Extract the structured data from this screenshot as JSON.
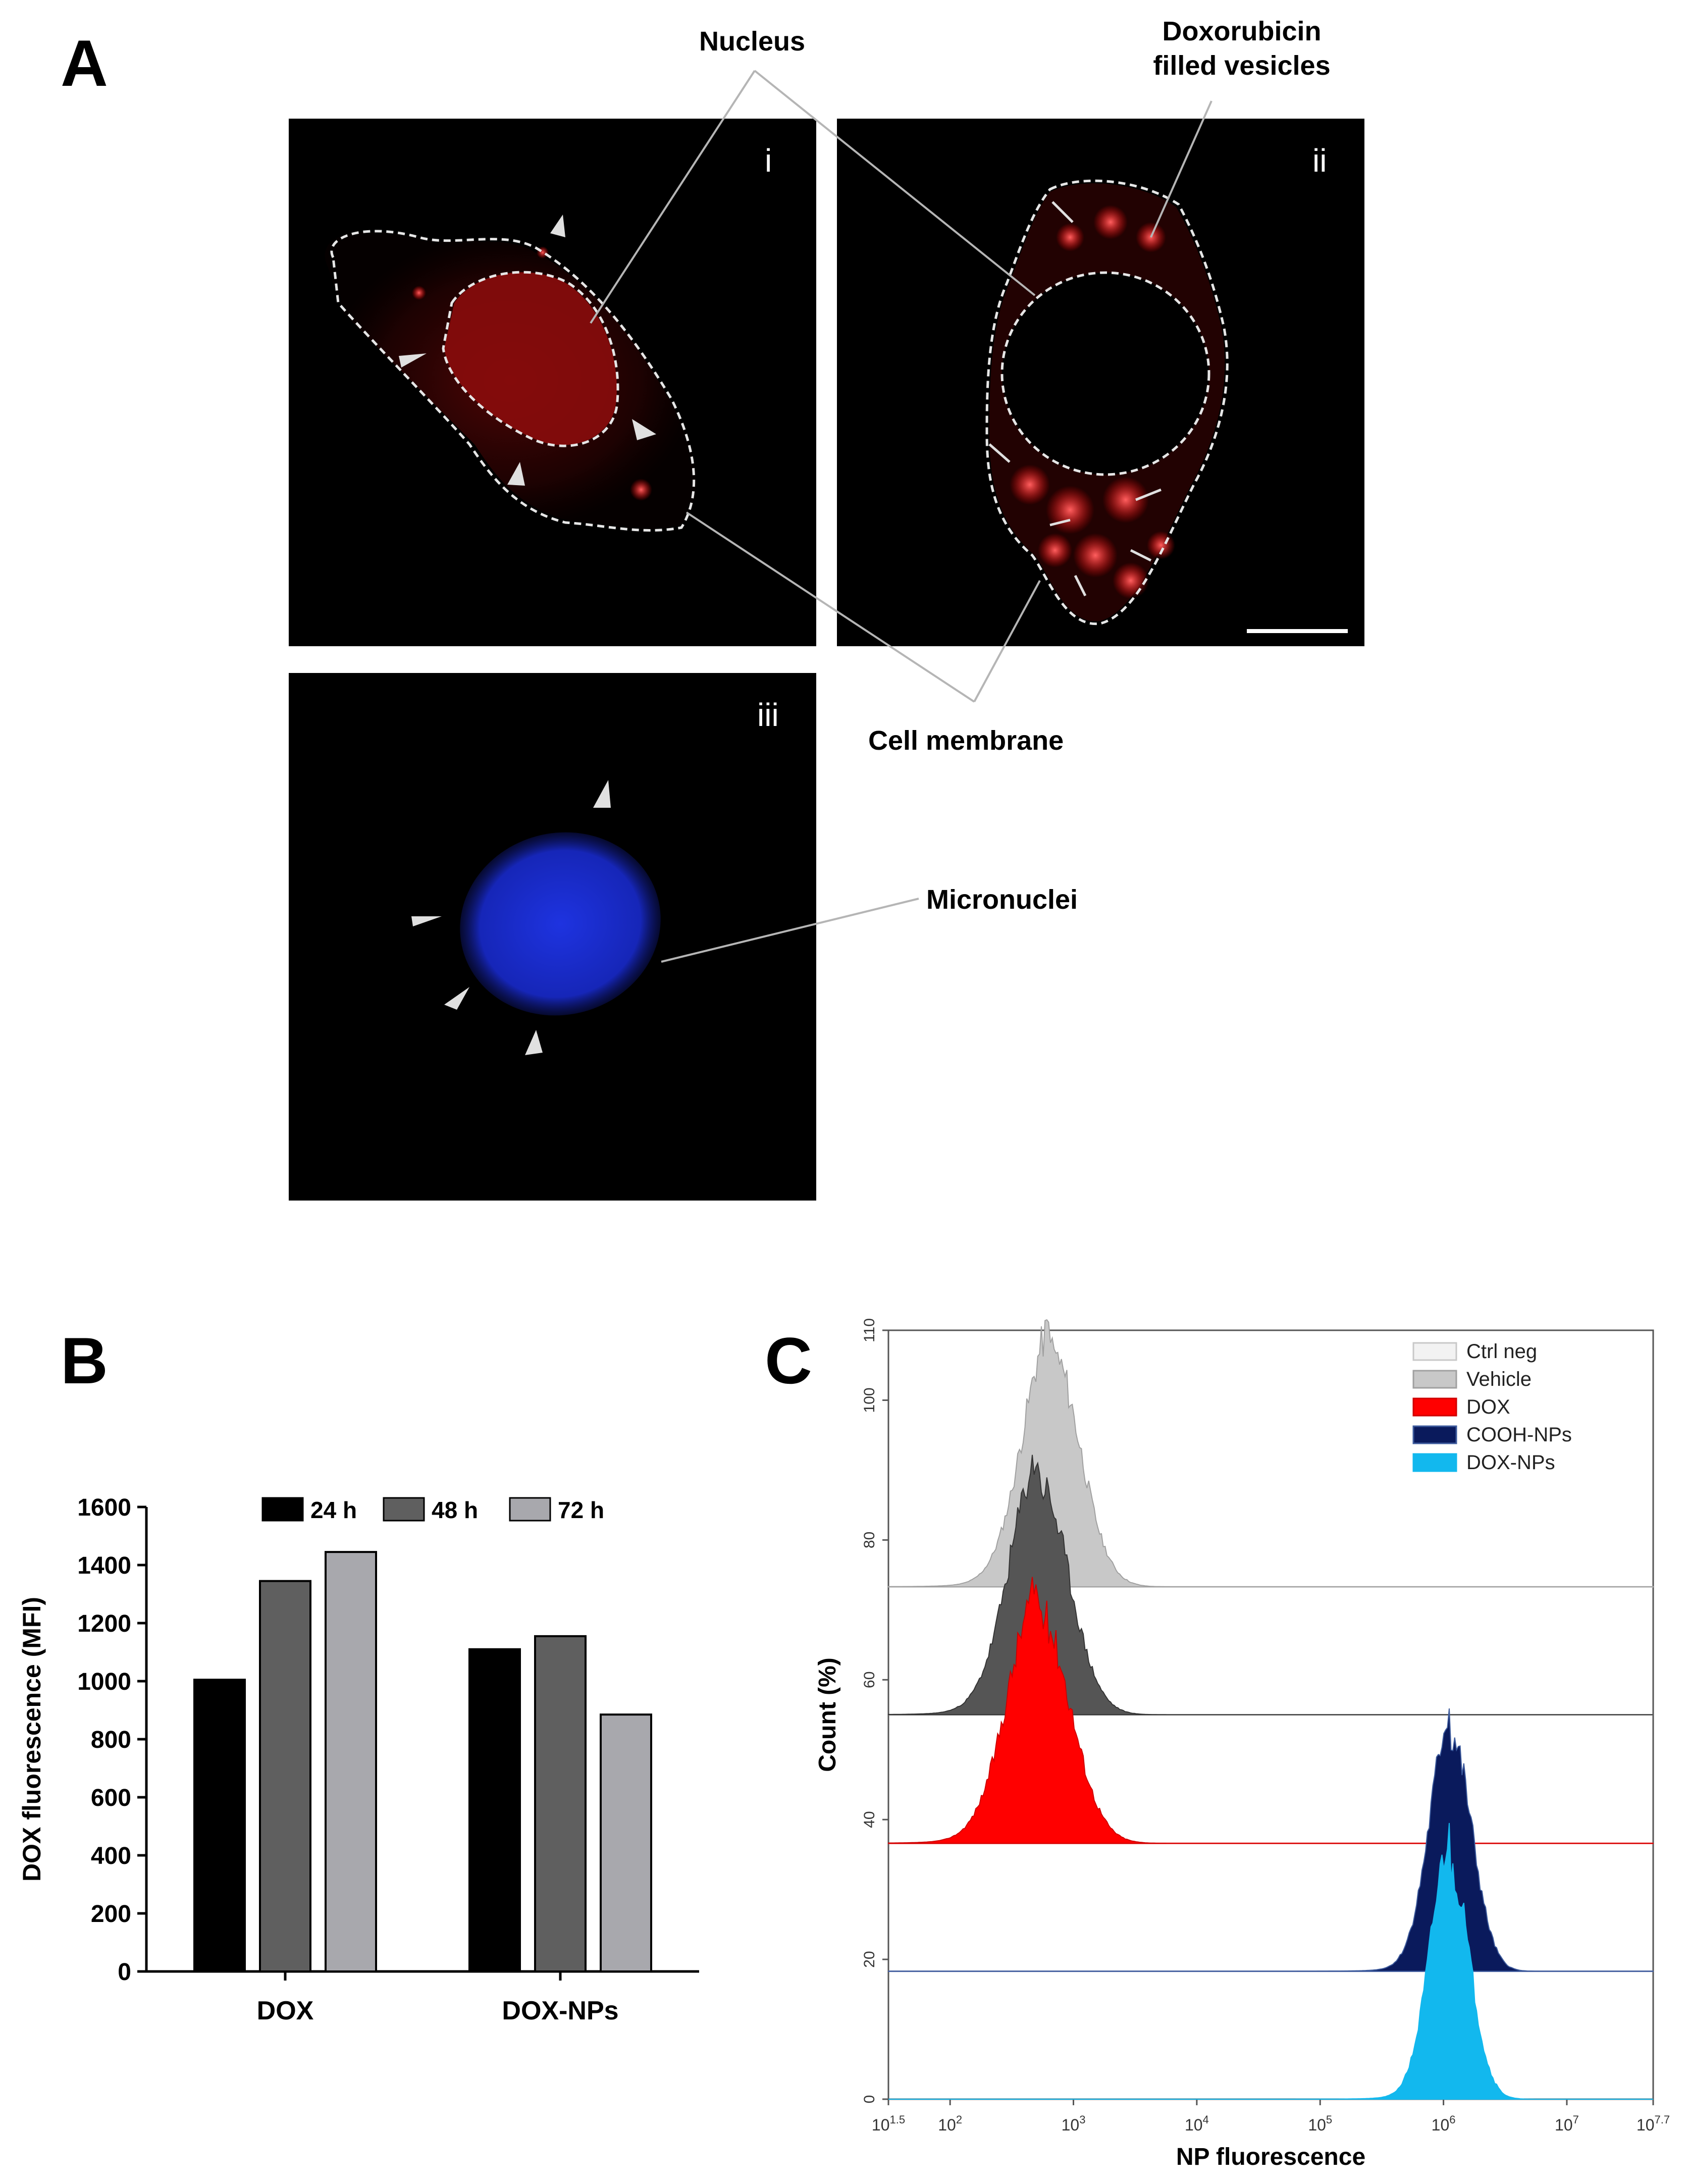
{
  "panel_a": {
    "letter": "A",
    "micrographs": [
      {
        "label": "i"
      },
      {
        "label": "ii"
      },
      {
        "label": "iii"
      }
    ],
    "callouts": {
      "nucleus": "Nucleus",
      "vesicles_line1": "Doxorubicin",
      "vesicles_line2": "filled vesicles",
      "cell_membrane": "Cell membrane",
      "micronuclei": "Micronuclei"
    },
    "colors": {
      "dox_signal": "#d01010",
      "dapi_signal": "#1a2fd0",
      "background": "#000000",
      "outline": "#e6e6e6"
    }
  },
  "panel_b": {
    "letter": "B",
    "chart_data": {
      "type": "bar",
      "ylabel": "DOX fluorescence (MFI)",
      "ylim": [
        0,
        1600
      ],
      "yticks": [
        "0",
        "200",
        "400",
        "600",
        "800",
        "1000",
        "1200",
        "1400",
        "1600"
      ],
      "categories": [
        "DOX",
        "DOX-NPs"
      ],
      "series": [
        {
          "name": "24 h",
          "color": "#000000",
          "values": [
            1005,
            1110
          ]
        },
        {
          "name": "48 h",
          "color": "#5f5f5f",
          "values": [
            1345,
            1155
          ]
        },
        {
          "name": "72 h",
          "color": "#a8a8ad",
          "values": [
            1445,
            885
          ]
        }
      ],
      "legend": "top"
    }
  },
  "panel_c": {
    "letter": "C",
    "chart_data": {
      "type": "area",
      "xlabel": "NP fluorescence",
      "ylabel": "Count (%)",
      "xscale": "log",
      "xlim": [
        1.5,
        7.7
      ],
      "ylim": [
        0,
        110
      ],
      "xticks": [
        {
          "base": "10",
          "exp": "1.5"
        },
        {
          "base": "10",
          "exp": "2"
        },
        {
          "base": "10",
          "exp": "3"
        },
        {
          "base": "10",
          "exp": "4"
        },
        {
          "base": "10",
          "exp": "5"
        },
        {
          "base": "10",
          "exp": "6"
        },
        {
          "base": "10",
          "exp": "7"
        },
        {
          "base": "10",
          "exp": "7.7"
        }
      ],
      "yticks": [
        "0",
        "20",
        "40",
        "60",
        "80",
        "100",
        "110"
      ],
      "legend": "top-right",
      "series": [
        {
          "name": "Ctrl neg",
          "fill": "#f2f2f2",
          "stroke": "#c8c8c8",
          "offset": 73.3,
          "peak_log": 2.82,
          "width": 0.23,
          "height": 33.5
        },
        {
          "name": "Vehicle",
          "fill": "#c8c8c8",
          "stroke": "#a0a0a0",
          "offset": 73.3,
          "peak_log": 2.78,
          "width": 0.23,
          "height": 33.5
        },
        {
          "name": "DOX",
          "fill": "#ff0000",
          "stroke": "#d00000",
          "offset": 36.6,
          "peak_log": 2.72,
          "width": 0.25,
          "height": 33.0
        },
        {
          "name": "COOH-NPs",
          "fill": "#0a1a5c",
          "stroke": "#3c5a9c",
          "offset": 18.3,
          "peak_log": 6.06,
          "width": 0.17,
          "height": 33.5
        },
        {
          "name": "DOX-NPs",
          "fill": "#12b8ee",
          "stroke": "#12b8ee",
          "offset": 0,
          "peak_log": 6.05,
          "width": 0.16,
          "height": 33.5
        }
      ],
      "vehicle_trace": {
        "offset": 55.0,
        "peak_log": 2.72,
        "width": 0.24,
        "height": 33.0,
        "fill": "#555555"
      }
    }
  }
}
